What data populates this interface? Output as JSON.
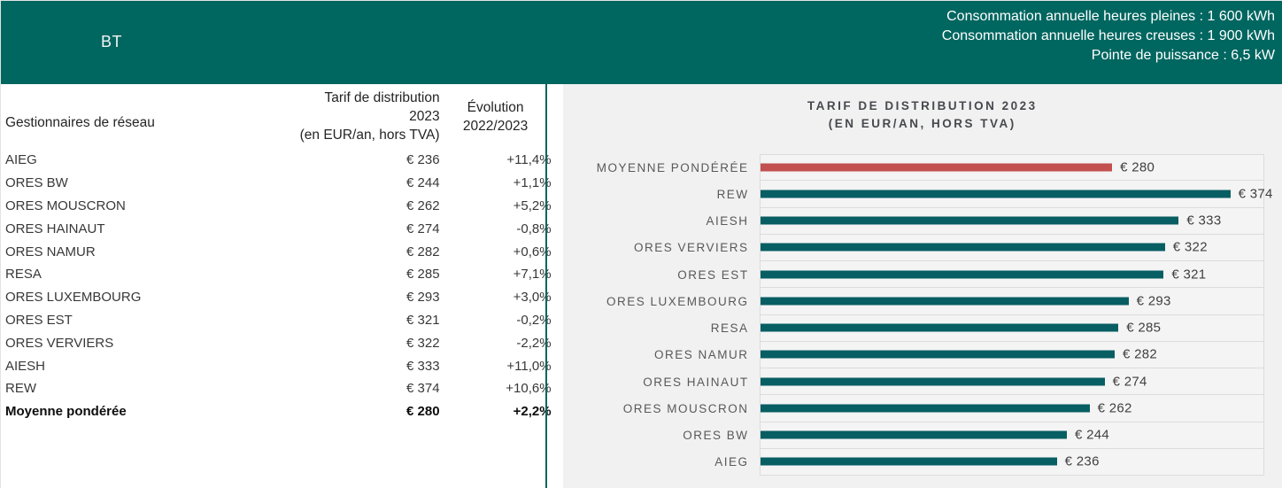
{
  "banner": {
    "title": "BT",
    "info_lines": [
      "Consommation annuelle heures pleines : 1 600 kWh",
      "Consommation annuelle heures creuses : 1 900 kWh",
      "Pointe de puissance : 6,5 kW"
    ]
  },
  "colors": {
    "banner_bg": "#006660",
    "panel_bg": "#f1f1f1",
    "grid_line": "#dcdcdc",
    "bar_teal": "#075e63",
    "bar_red": "#c2504e"
  },
  "table": {
    "columns": {
      "name": "Gestionnaires de réseau",
      "tarif": "Tarif de distribution\n2023\n(en EUR/an, hors TVA)",
      "evolution": "Évolution\n2022/2023"
    },
    "rows": [
      {
        "name": "AIEG",
        "tarif": "€ 236",
        "evolution": "+11,4%",
        "bold": false
      },
      {
        "name": "ORES BW",
        "tarif": "€ 244",
        "evolution": "+1,1%",
        "bold": false
      },
      {
        "name": "ORES MOUSCRON",
        "tarif": "€ 262",
        "evolution": "+5,2%",
        "bold": false
      },
      {
        "name": "ORES HAINAUT",
        "tarif": "€ 274",
        "evolution": "-0,8%",
        "bold": false
      },
      {
        "name": "ORES NAMUR",
        "tarif": "€ 282",
        "evolution": "+0,6%",
        "bold": false
      },
      {
        "name": "RESA",
        "tarif": "€ 285",
        "evolution": "+7,1%",
        "bold": false
      },
      {
        "name": "ORES LUXEMBOURG",
        "tarif": "€ 293",
        "evolution": "+3,0%",
        "bold": false
      },
      {
        "name": "ORES EST",
        "tarif": "€ 321",
        "evolution": "-0,2%",
        "bold": false
      },
      {
        "name": "ORES VERVIERS",
        "tarif": "€ 322",
        "evolution": "-2,2%",
        "bold": false
      },
      {
        "name": "AIESH",
        "tarif": "€ 333",
        "evolution": "+11,0%",
        "bold": false
      },
      {
        "name": "REW",
        "tarif": "€ 374",
        "evolution": "+10,6%",
        "bold": false
      },
      {
        "name": "Moyenne pondérée",
        "tarif": "€ 280",
        "evolution": "+2,2%",
        "bold": true
      }
    ]
  },
  "chart_data": {
    "type": "bar",
    "orientation": "horizontal",
    "title": "TARIF DE DISTRIBUTION 2023",
    "subtitle": "(EN EUR/AN, HORS TVA)",
    "categories": [
      "MOYENNE PONDÉRÉE",
      "REW",
      "AIESH",
      "ORES VERVIERS",
      "ORES EST",
      "ORES LUXEMBOURG",
      "RESA",
      "ORES NAMUR",
      "ORES HAINAUT",
      "ORES MOUSCRON",
      "ORES BW",
      "AIEG"
    ],
    "values": [
      280,
      374,
      333,
      322,
      321,
      293,
      285,
      282,
      274,
      262,
      244,
      236
    ],
    "labels": [
      "€ 280",
      "€ 374",
      "€ 333",
      "€ 322",
      "€ 321",
      "€ 293",
      "€ 285",
      "€ 282",
      "€ 274",
      "€ 262",
      "€ 244",
      "€ 236"
    ],
    "xlim": [
      0,
      400
    ],
    "highlight_index": 0,
    "grid": "row-separators",
    "legend_position": "none"
  }
}
